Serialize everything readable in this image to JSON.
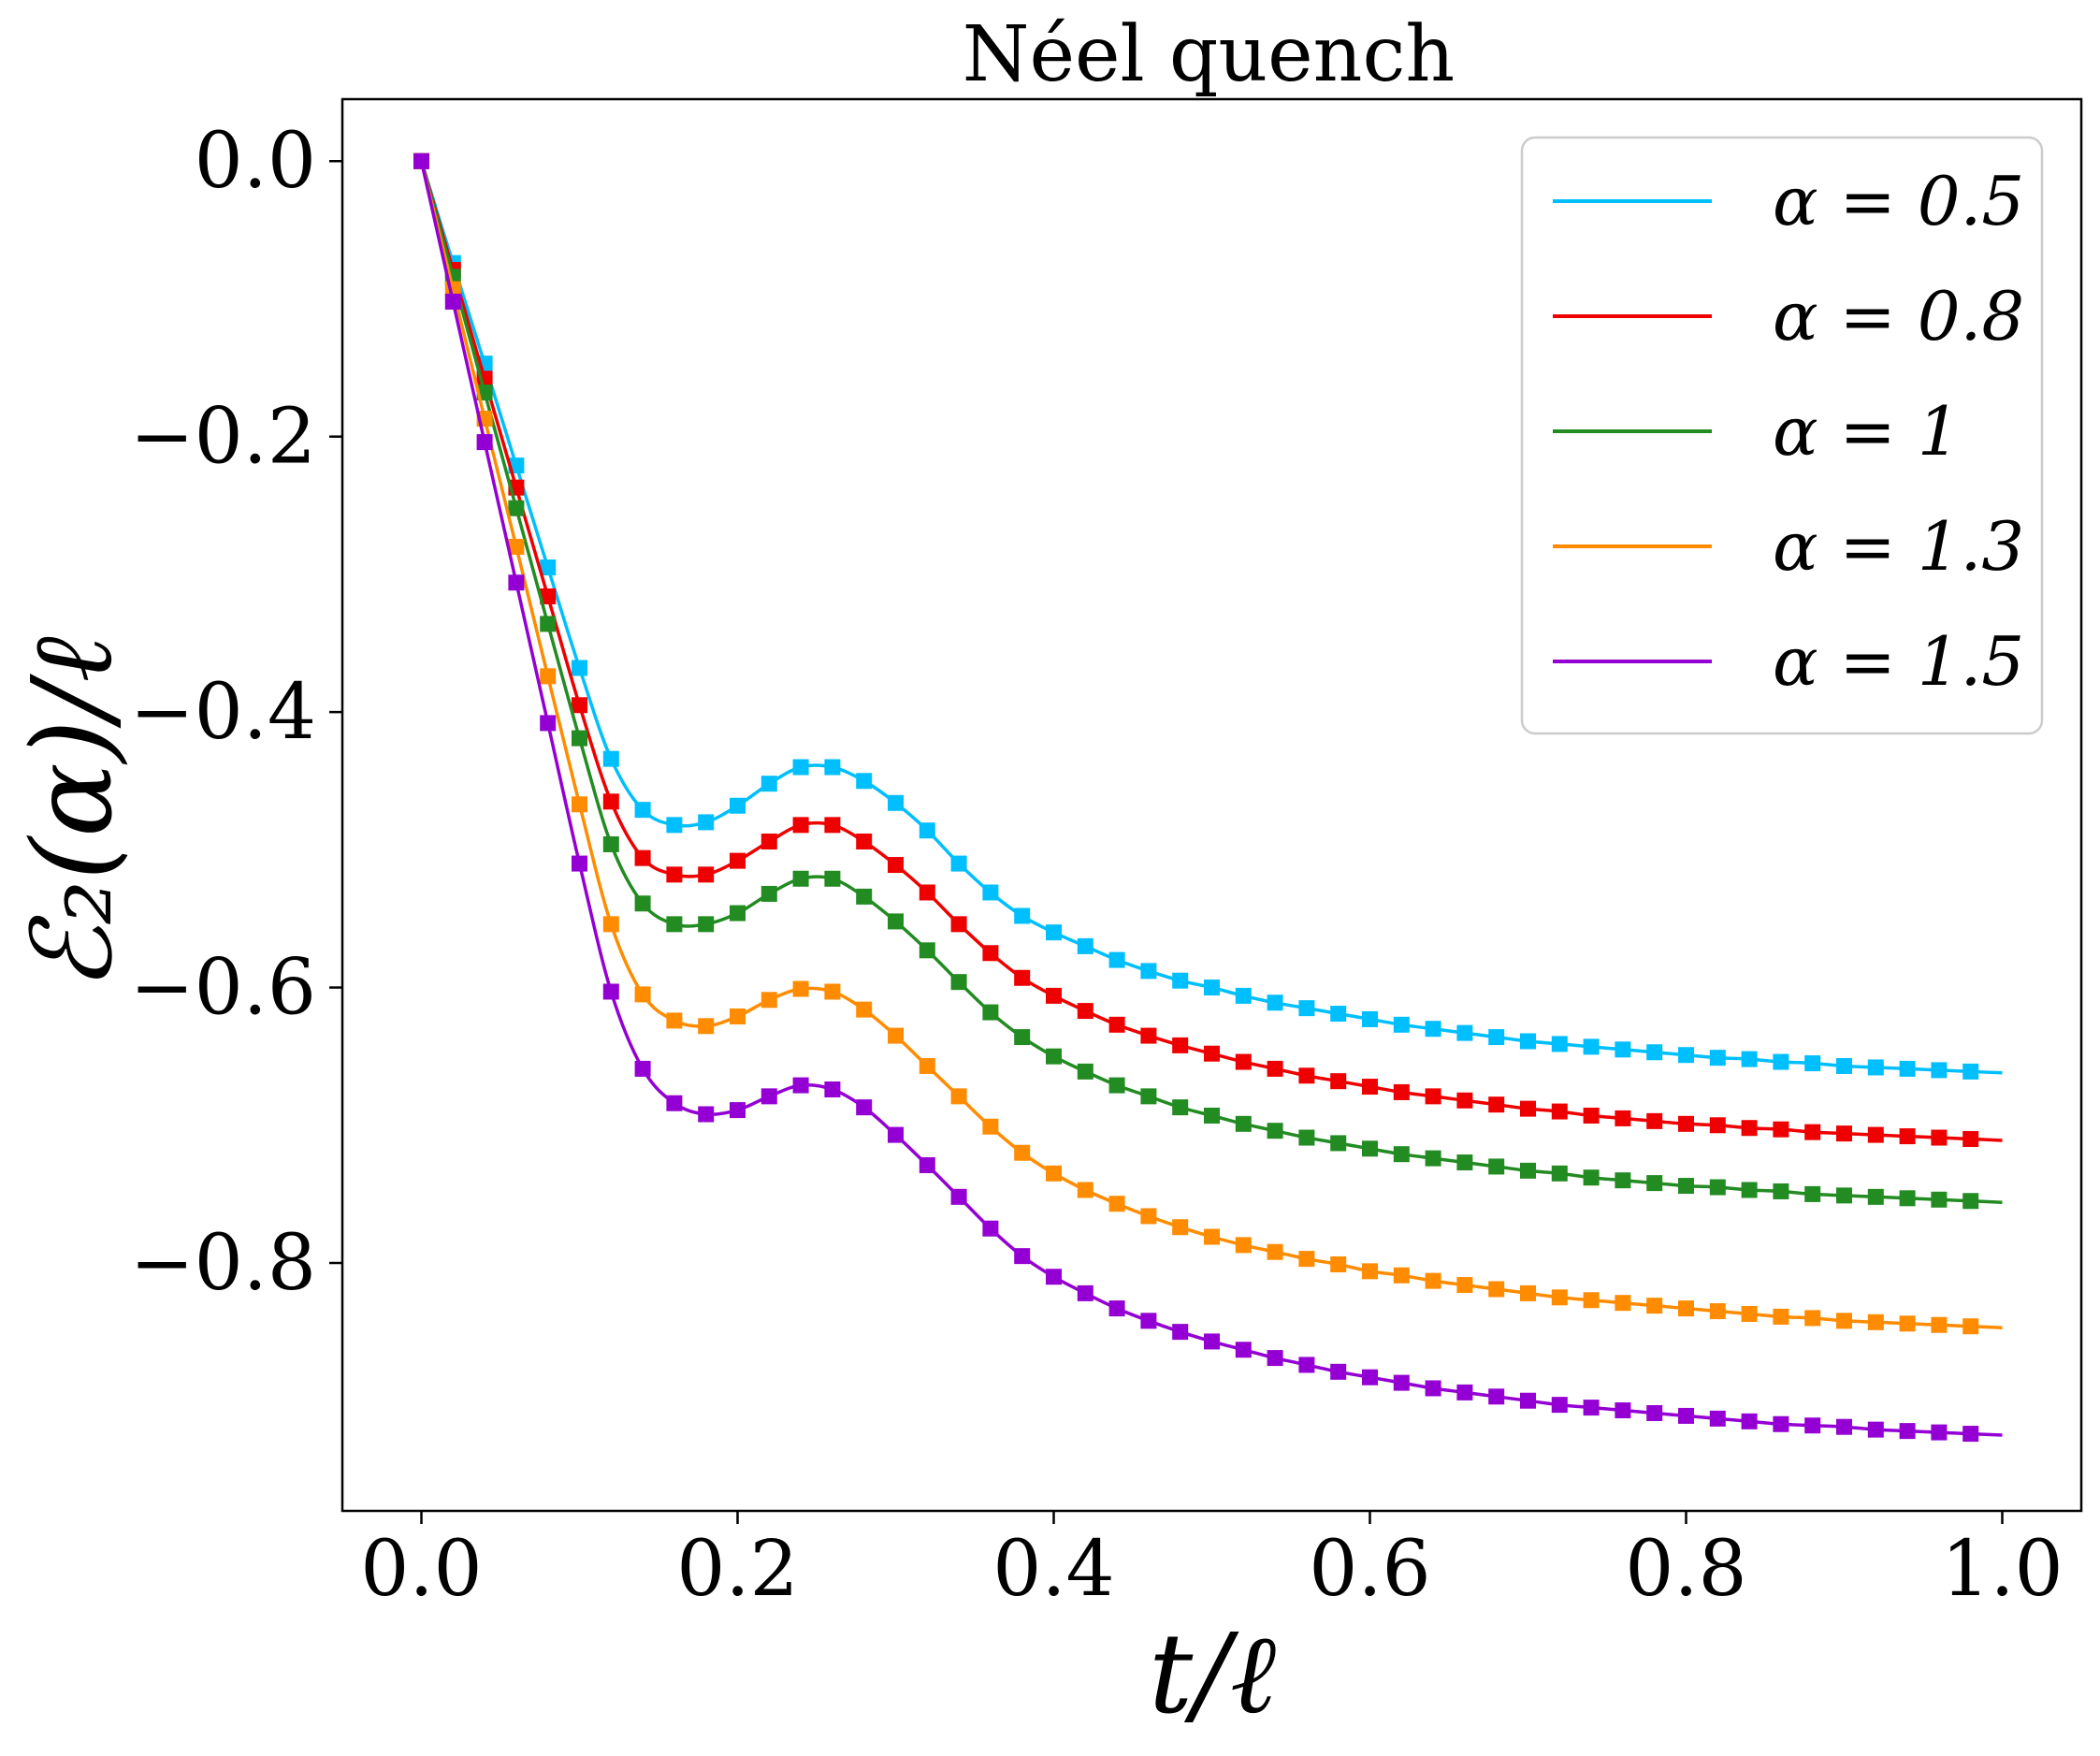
{
  "chart_data": {
    "type": "line",
    "title": "Néel quench",
    "xlabel": "t/ℓ",
    "ylabel": "ℰ₂(α)/ℓ",
    "xlim": [
      -0.05,
      1.05
    ],
    "ylim": [
      -0.98,
      0.045
    ],
    "xticks": [
      0.0,
      0.2,
      0.4,
      0.6,
      0.8,
      1.0
    ],
    "xtick_labels": [
      "0.0",
      "0.2",
      "0.4",
      "0.6",
      "0.8",
      "1.0"
    ],
    "yticks": [
      0.0,
      -0.2,
      -0.4,
      -0.6,
      -0.8
    ],
    "ytick_labels": [
      "0.0",
      "−0.2",
      "−0.4",
      "−0.6",
      "−0.8"
    ],
    "grid": false,
    "legend_position": "top-right",
    "x": [
      0.0,
      0.02,
      0.04,
      0.06,
      0.08,
      0.1,
      0.12,
      0.14,
      0.16,
      0.18,
      0.2,
      0.22,
      0.24,
      0.26,
      0.28,
      0.3,
      0.32,
      0.34,
      0.36,
      0.38,
      0.4,
      0.42,
      0.44,
      0.46,
      0.48,
      0.5,
      0.52,
      0.54,
      0.56,
      0.58,
      0.6,
      0.62,
      0.64,
      0.66,
      0.68,
      0.7,
      0.72,
      0.74,
      0.76,
      0.78,
      0.8,
      0.82,
      0.84,
      0.86,
      0.88,
      0.9,
      0.92,
      0.94,
      0.96,
      0.98
    ],
    "series": [
      {
        "name": "α = 0.5",
        "color": "#00bfff",
        "values": [
          0.0,
          -0.074,
          -0.147,
          -0.221,
          -0.295,
          -0.368,
          -0.434,
          -0.471,
          -0.482,
          -0.48,
          -0.468,
          -0.452,
          -0.44,
          -0.44,
          -0.45,
          -0.466,
          -0.486,
          -0.51,
          -0.531,
          -0.548,
          -0.56,
          -0.57,
          -0.58,
          -0.588,
          -0.595,
          -0.6,
          -0.606,
          -0.611,
          -0.615,
          -0.619,
          -0.623,
          -0.627,
          -0.63,
          -0.633,
          -0.636,
          -0.639,
          -0.641,
          -0.643,
          -0.645,
          -0.647,
          -0.649,
          -0.651,
          -0.652,
          -0.654,
          -0.655,
          -0.657,
          -0.658,
          -0.659,
          -0.66,
          -0.661
        ]
      },
      {
        "name": "α = 0.8",
        "color": "#ee0000",
        "values": [
          0.0,
          -0.079,
          -0.158,
          -0.237,
          -0.316,
          -0.395,
          -0.465,
          -0.506,
          -0.518,
          -0.518,
          -0.508,
          -0.494,
          -0.482,
          -0.482,
          -0.494,
          -0.511,
          -0.531,
          -0.554,
          -0.575,
          -0.593,
          -0.606,
          -0.617,
          -0.627,
          -0.635,
          -0.642,
          -0.648,
          -0.654,
          -0.659,
          -0.664,
          -0.668,
          -0.672,
          -0.676,
          -0.679,
          -0.682,
          -0.685,
          -0.688,
          -0.69,
          -0.693,
          -0.695,
          -0.697,
          -0.699,
          -0.7,
          -0.702,
          -0.703,
          -0.705,
          -0.706,
          -0.707,
          -0.708,
          -0.709,
          -0.71
        ]
      },
      {
        "name": "α = 1",
        "color": "#228b22",
        "values": [
          0.0,
          -0.084,
          -0.168,
          -0.252,
          -0.336,
          -0.419,
          -0.496,
          -0.539,
          -0.554,
          -0.554,
          -0.546,
          -0.532,
          -0.521,
          -0.521,
          -0.534,
          -0.552,
          -0.573,
          -0.596,
          -0.618,
          -0.636,
          -0.65,
          -0.661,
          -0.671,
          -0.679,
          -0.687,
          -0.693,
          -0.699,
          -0.704,
          -0.709,
          -0.713,
          -0.717,
          -0.721,
          -0.724,
          -0.727,
          -0.73,
          -0.733,
          -0.735,
          -0.738,
          -0.74,
          -0.742,
          -0.744,
          -0.745,
          -0.747,
          -0.748,
          -0.75,
          -0.751,
          -0.752,
          -0.753,
          -0.754,
          -0.755
        ]
      },
      {
        "name": "α = 1.3",
        "color": "#ff8c00",
        "values": [
          0.0,
          -0.093,
          -0.187,
          -0.28,
          -0.374,
          -0.467,
          -0.554,
          -0.605,
          -0.624,
          -0.628,
          -0.621,
          -0.609,
          -0.601,
          -0.603,
          -0.616,
          -0.635,
          -0.657,
          -0.679,
          -0.701,
          -0.72,
          -0.735,
          -0.747,
          -0.757,
          -0.766,
          -0.774,
          -0.781,
          -0.787,
          -0.792,
          -0.797,
          -0.801,
          -0.806,
          -0.809,
          -0.813,
          -0.816,
          -0.819,
          -0.822,
          -0.825,
          -0.827,
          -0.829,
          -0.831,
          -0.833,
          -0.835,
          -0.837,
          -0.839,
          -0.84,
          -0.842,
          -0.843,
          -0.844,
          -0.845,
          -0.846
        ]
      },
      {
        "name": "α = 1.5",
        "color": "#9400d3",
        "values": [
          0.0,
          -0.102,
          -0.204,
          -0.306,
          -0.408,
          -0.51,
          -0.603,
          -0.659,
          -0.684,
          -0.692,
          -0.689,
          -0.679,
          -0.671,
          -0.674,
          -0.687,
          -0.707,
          -0.729,
          -0.752,
          -0.775,
          -0.795,
          -0.81,
          -0.822,
          -0.833,
          -0.842,
          -0.85,
          -0.857,
          -0.863,
          -0.869,
          -0.874,
          -0.879,
          -0.883,
          -0.887,
          -0.891,
          -0.894,
          -0.897,
          -0.9,
          -0.903,
          -0.905,
          -0.907,
          -0.909,
          -0.911,
          -0.913,
          -0.915,
          -0.917,
          -0.918,
          -0.919,
          -0.921,
          -0.922,
          -0.923,
          -0.924
        ]
      }
    ]
  }
}
